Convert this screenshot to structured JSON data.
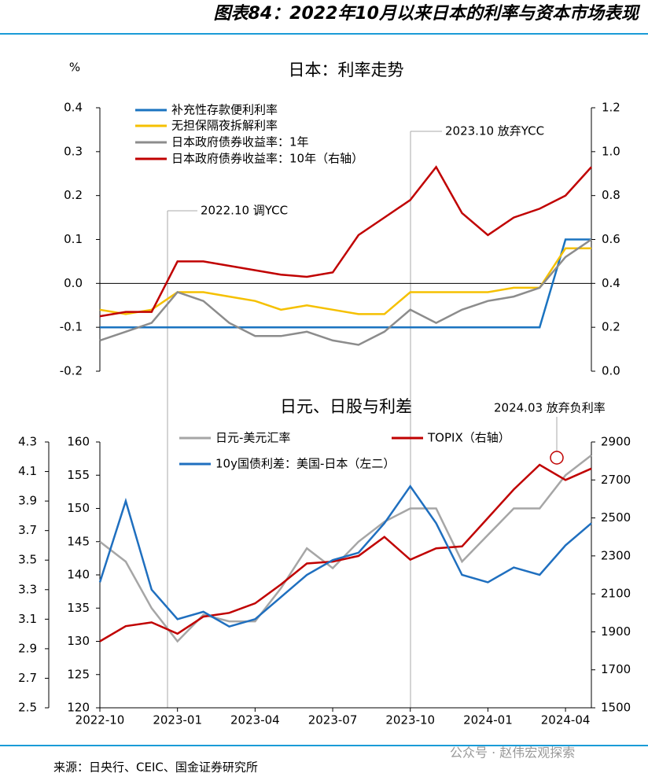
{
  "header": {
    "title": "图表84：2022年10月以来日本的利率与资本市场表现"
  },
  "chart_data": [
    {
      "type": "line",
      "title": "日本：利率走势",
      "ylabel": "%",
      "x": [
        null,
        null,
        null,
        null,
        null,
        null,
        null,
        null,
        null,
        null,
        null,
        null,
        null,
        null,
        null,
        null,
        null,
        null,
        null,
        null
      ],
      "ylim": [
        -0.2,
        0.4
      ],
      "yticks": [
        -0.2,
        -0.1,
        {
          "value": 0,
          "label": "0.0"
        },
        0.1,
        0.2,
        0.3,
        0.4
      ],
      "y2lim": [
        0,
        1.2
      ],
      "y2ticks": [
        {
          "value": 0,
          "label": "0.0"
        },
        0.2,
        0.4,
        0.6,
        0.8,
        {
          "value": 1,
          "label": "1.0"
        },
        1.2
      ],
      "annotations": [
        "2022.10 调YCC",
        "2023.10 放弃YCC"
      ],
      "series": [
        {
          "name": "补充性存款便利利率",
          "color": "#1a73c0",
          "values": [
            -0.1,
            -0.1,
            -0.1,
            -0.1,
            -0.1,
            -0.1,
            -0.1,
            -0.1,
            -0.1,
            -0.1,
            -0.1,
            -0.1,
            -0.1,
            -0.1,
            -0.1,
            -0.1,
            -0.1,
            -0.1,
            0.1,
            0.1
          ]
        },
        {
          "name": "无担保隔夜拆解利率",
          "color": "#f5c000",
          "values": [
            -0.06,
            -0.07,
            -0.06,
            -0.02,
            -0.02,
            -0.03,
            -0.04,
            -0.06,
            -0.05,
            -0.06,
            -0.07,
            -0.07,
            -0.02,
            -0.02,
            -0.02,
            -0.02,
            -0.01,
            -0.01,
            0.08,
            0.08
          ]
        },
        {
          "name": "日本政府债券收益率：1年",
          "color": "#8c8c8c",
          "values": [
            -0.13,
            -0.11,
            -0.09,
            -0.02,
            -0.04,
            -0.09,
            -0.12,
            -0.12,
            -0.11,
            -0.13,
            -0.14,
            -0.11,
            -0.06,
            -0.09,
            -0.06,
            -0.04,
            -0.03,
            -0.01,
            0.06,
            0.1
          ]
        },
        {
          "name": "日本政府债券收益率：10年（右轴）",
          "color": "#c00000",
          "axis": "y2",
          "values": [
            0.25,
            0.27,
            0.27,
            0.5,
            0.5,
            0.48,
            0.46,
            0.44,
            0.43,
            0.45,
            0.62,
            0.7,
            0.78,
            0.93,
            0.72,
            0.62,
            0.7,
            0.74,
            0.8,
            0.93
          ]
        }
      ]
    },
    {
      "type": "line",
      "title": "日元、日股与利差",
      "x": [
        "2022-10",
        null,
        null,
        "2023-01",
        null,
        null,
        "2023-04",
        null,
        null,
        "2023-07",
        null,
        null,
        "2023-10",
        null,
        null,
        "2024-01",
        null,
        null,
        "2024-04",
        null
      ],
      "ylim": [
        120,
        160
      ],
      "yticks": [
        120,
        125,
        130,
        135,
        140,
        145,
        150,
        155,
        160
      ],
      "y2lim": [
        1500,
        2900
      ],
      "y2ticks": [
        1500,
        1700,
        1900,
        2100,
        2300,
        2500,
        2700,
        2900
      ],
      "y3lim": [
        2.5,
        4.3
      ],
      "y3ticks": [
        2.5,
        2.7,
        2.9,
        3.1,
        3.3,
        3.5,
        3.7,
        3.9,
        4.1,
        4.3
      ],
      "annotations": [
        "2024.03 放弃负利率"
      ],
      "series": [
        {
          "name": "日元-美元汇率",
          "color": "#a6a6a6",
          "values": [
            145,
            142,
            135,
            130,
            134,
            133,
            133,
            138,
            144,
            141,
            145,
            148,
            150,
            150,
            142,
            146,
            150,
            150,
            155,
            158
          ]
        },
        {
          "name": "TOPIX（右轴）",
          "color": "#c00000",
          "axis": "y2",
          "values": [
            1850,
            1930,
            1950,
            1890,
            1980,
            2000,
            2050,
            2150,
            2260,
            2270,
            2300,
            2400,
            2280,
            2340,
            2350,
            2500,
            2650,
            2780,
            2700,
            2760
          ]
        },
        {
          "name": "10y国债利差：美国-日本（左二）",
          "color": "#1f6fbf",
          "axis": "y3",
          "values": [
            3.35,
            3.9,
            3.3,
            3.1,
            3.15,
            3.05,
            3.1,
            3.25,
            3.4,
            3.5,
            3.55,
            3.75,
            4.0,
            3.75,
            3.4,
            3.35,
            3.45,
            3.4,
            3.6,
            3.75
          ]
        }
      ]
    }
  ],
  "footer": {
    "source": "来源：日央行、CEIC、国金证券研究所",
    "watermark": "公众号 · 赵伟宏观探索"
  }
}
